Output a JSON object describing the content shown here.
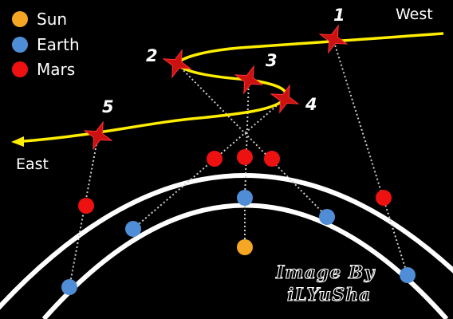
{
  "legend": {
    "items": [
      {
        "label": "Sun",
        "color": "#f5a623"
      },
      {
        "label": "Earth",
        "color": "#4f8ed6"
      },
      {
        "label": "Mars",
        "color": "#ee1111"
      }
    ]
  },
  "directions": {
    "west": "West",
    "east": "East"
  },
  "positions": [
    {
      "number": "1"
    },
    {
      "number": "2"
    },
    {
      "number": "3"
    },
    {
      "number": "4"
    },
    {
      "number": "5"
    }
  ],
  "credit": {
    "line1": "Image By",
    "line2": "iLYuSha"
  },
  "colors": {
    "background": "#000000",
    "orbit": "#ffffff",
    "path": "#ffee00",
    "star": "#cc1111",
    "sightline": "#cccccc"
  }
}
